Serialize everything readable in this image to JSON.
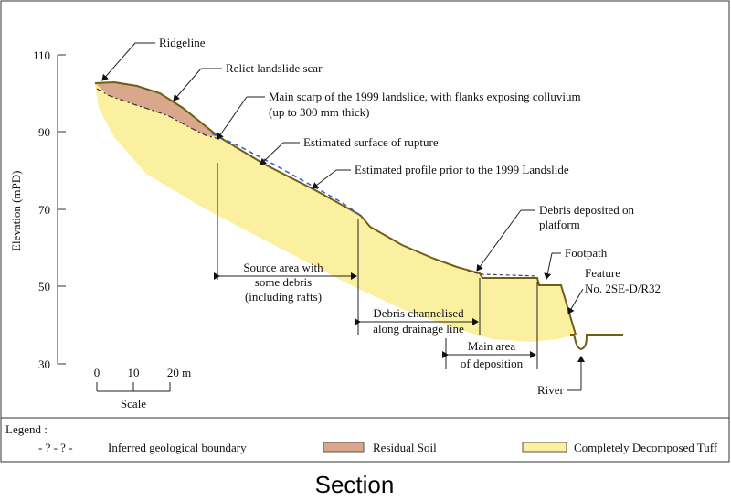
{
  "caption": "Section",
  "axis": {
    "ylabel": "Elevation (mPD)",
    "ticks": [
      "110",
      "90",
      "70",
      "50",
      "30"
    ]
  },
  "scale_bar": {
    "ticks": [
      "0",
      "10",
      "20 m"
    ],
    "label": "Scale"
  },
  "annotations": {
    "ridgeline": "Ridgeline",
    "relict_scar": "Relict landslide scar",
    "main_scarp_1": "Main scarp of the 1999 landslide, with flanks exposing colluvium",
    "main_scarp_2": "(up to 300 mm thick)",
    "rupture": "Estimated surface of rupture",
    "prior_profile": "Estimated profile prior to the 1999 Landslide",
    "debris_platform_1": "Debris deposited on",
    "debris_platform_2": "platform",
    "footpath": "Footpath",
    "feature_1": "Feature",
    "feature_2": "No. 2SE-D/R32",
    "river": "River",
    "source_1": "Source area with",
    "source_2": "some debris",
    "source_3": "(including rafts)",
    "channel_1": "Debris channelised",
    "channel_2": "along drainage line",
    "deposition_1": "Main area",
    "deposition_2": "of deposition"
  },
  "legend": {
    "title": "Legend :",
    "items": [
      {
        "label": "Inferred geological boundary",
        "symbol": "- ? - ? -"
      },
      {
        "label": "Residual Soil",
        "color": "#d9a88c"
      },
      {
        "label": "Completely Decomposed Tuff",
        "color": "#fbf0a0"
      }
    ]
  },
  "colors": {
    "tuff": "#fbf0a0",
    "residual_soil": "#d9a88c",
    "profile_line": "#7a6a20",
    "prior_profile": "#3a5fcf"
  }
}
